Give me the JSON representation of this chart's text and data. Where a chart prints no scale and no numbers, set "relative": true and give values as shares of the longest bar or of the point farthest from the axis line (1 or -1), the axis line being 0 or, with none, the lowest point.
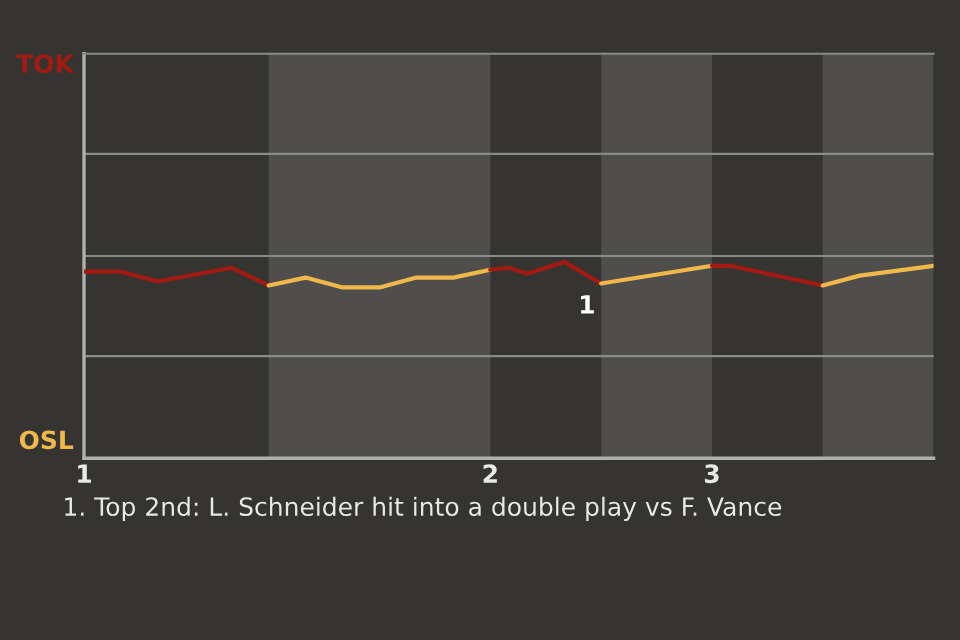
{
  "chart_data": {
    "type": "line",
    "relative": true,
    "categories": [
      "1",
      null,
      null,
      null,
      null,
      null,
      null,
      null,
      null,
      null,
      null,
      null,
      null,
      null,
      null,
      null,
      null,
      null,
      null,
      null,
      null,
      null,
      "2",
      null,
      null,
      null,
      null,
      null,
      null,
      null,
      null,
      null,
      null,
      null,
      "3",
      null,
      null,
      null,
      null,
      null,
      null,
      null,
      null,
      null,
      null,
      null,
      null
    ],
    "line_style": "solid",
    "marker": "none",
    "ref_lines": [
      {
        "axis": "y",
        "value": 0.52,
        "color": "#8a8a88"
      },
      {
        "axis": "y",
        "value": 1.03,
        "color": "#8a8a88"
      },
      {
        "axis": "y",
        "value": 1.55,
        "color": "#8a8a88"
      }
    ],
    "series": [
      {
        "color": "#a31a12",
        "values": [
          0.95,
          null,
          0.95,
          null,
          0.9,
          null,
          null,
          null,
          0.97,
          null,
          0.88,
          null,
          null,
          null,
          null,
          null,
          null,
          null,
          null,
          null,
          null,
          null,
          null,
          null,
          null,
          null,
          null,
          null,
          null,
          null,
          null,
          null,
          null,
          null,
          null,
          null,
          null,
          null,
          null,
          null,
          null,
          null,
          null,
          null,
          null,
          null,
          null
        ]
      },
      {
        "color": "#f0b84a",
        "values": [
          null,
          null,
          null,
          null,
          null,
          null,
          null,
          null,
          null,
          null,
          0.88,
          null,
          0.92,
          null,
          0.87,
          null,
          0.87,
          null,
          0.92,
          null,
          0.92,
          null,
          0.96,
          null,
          null,
          null,
          null,
          null,
          null,
          null,
          null,
          null,
          null,
          null,
          null,
          null,
          null,
          null,
          null,
          null,
          null,
          null,
          null,
          null,
          null,
          null,
          null
        ]
      },
      {
        "color": "#a31a12",
        "values": [
          null,
          null,
          null,
          null,
          null,
          null,
          null,
          null,
          null,
          null,
          null,
          null,
          null,
          null,
          null,
          null,
          null,
          null,
          null,
          null,
          null,
          null,
          0.96,
          0.97,
          0.94,
          null,
          1,
          null,
          0.89,
          null,
          null,
          null,
          null,
          null,
          null,
          null,
          null,
          null,
          null,
          null,
          null,
          null,
          null,
          null,
          null,
          null,
          null
        ]
      },
      {
        "color": "#f0b84a",
        "values": [
          null,
          null,
          null,
          null,
          null,
          null,
          null,
          null,
          null,
          null,
          null,
          null,
          null,
          null,
          null,
          null,
          null,
          null,
          null,
          null,
          null,
          null,
          null,
          null,
          null,
          null,
          null,
          null,
          0.89,
          null,
          null,
          null,
          null,
          null,
          0.98,
          null,
          null,
          null,
          null,
          null,
          null,
          null,
          null,
          null,
          null,
          null,
          null
        ]
      },
      {
        "color": "#a31a12",
        "values": [
          null,
          null,
          null,
          null,
          null,
          null,
          null,
          null,
          null,
          null,
          null,
          null,
          null,
          null,
          null,
          null,
          null,
          null,
          null,
          null,
          null,
          null,
          null,
          null,
          null,
          null,
          null,
          null,
          null,
          null,
          null,
          null,
          null,
          null,
          0.98,
          0.98,
          0.96,
          null,
          null,
          null,
          0.88,
          null,
          null,
          null,
          null,
          null,
          null
        ]
      },
      {
        "color": "#f0b84a",
        "values": [
          null,
          null,
          null,
          null,
          null,
          null,
          null,
          null,
          null,
          null,
          null,
          null,
          null,
          null,
          null,
          null,
          null,
          null,
          null,
          null,
          null,
          null,
          null,
          null,
          null,
          null,
          null,
          null,
          null,
          null,
          null,
          null,
          null,
          null,
          null,
          null,
          null,
          null,
          null,
          null,
          0.88,
          null,
          0.93,
          null,
          null,
          null,
          0.98
        ]
      }
    ],
    "annotations": [
      "TOK",
      "OSL",
      {
        "text": "1",
        "y": 0.89
      },
      "1. Top 2nd: L. Schneider hit into a double play vs F. Vance"
    ]
  }
}
